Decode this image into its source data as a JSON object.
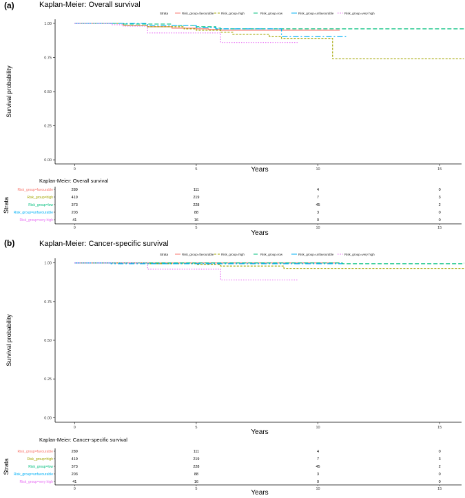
{
  "chart_data": [
    {
      "panel_label": "(a)",
      "type": "line",
      "subtype": "kaplan-meier step",
      "title": "Kaplan-Meier: Overall survival",
      "xlabel": "Years",
      "ylabel": "Survival probability",
      "xlim": [
        -0.8,
        15.9
      ],
      "ylim": [
        -0.03,
        1.03
      ],
      "xticks": [
        "0",
        "5",
        "10",
        "15"
      ],
      "yticks": [
        "0.00",
        "0.25",
        "0.50",
        "0.75",
        "1.00"
      ],
      "legend_title": "Strata",
      "series": [
        {
          "name": "Risk_group=favourable",
          "color": "#F8766D",
          "dash": "solid",
          "x": [
            0,
            2,
            3,
            4,
            5,
            5.5,
            6,
            10.9
          ],
          "y": [
            1,
            0.985,
            0.975,
            0.965,
            0.96,
            0.955,
            0.95,
            0.95
          ]
        },
        {
          "name": "Risk_group=high",
          "color": "#A3A500",
          "dash": "short",
          "x": [
            0,
            2,
            3,
            4.5,
            5,
            6,
            6.5,
            8,
            8.5,
            10.5,
            10.6,
            16
          ],
          "y": [
            1,
            0.985,
            0.975,
            0.96,
            0.95,
            0.935,
            0.92,
            0.905,
            0.89,
            0.89,
            0.74,
            0.74
          ]
        },
        {
          "name": "Risk_group=low",
          "color": "#00BF7D",
          "dash": "long",
          "x": [
            0,
            2,
            4,
            5,
            5.8,
            6,
            16
          ],
          "y": [
            1,
            0.995,
            0.985,
            0.975,
            0.965,
            0.96,
            0.96
          ]
        },
        {
          "name": "Risk_group=unfavourable",
          "color": "#00B0F6",
          "dash": "longshort",
          "x": [
            0,
            3,
            5,
            5.8,
            8.5,
            11.2
          ],
          "y": [
            1,
            0.985,
            0.97,
            0.96,
            0.905,
            0.905
          ]
        },
        {
          "name": "Risk_group=very high",
          "color": "#E76BF3",
          "dash": "dot",
          "x": [
            0,
            1.5,
            2,
            3,
            5.5,
            6,
            9.2
          ],
          "y": [
            1,
            0.99,
            0.98,
            0.93,
            0.93,
            0.86,
            0.86
          ]
        }
      ],
      "risk_table": {
        "title": "Kaplan-Meier: Overall survival",
        "ylabel": "Strata",
        "xlabel": "Years",
        "times": [
          "0",
          "5",
          "10",
          "15"
        ],
        "rows": [
          {
            "strata": "Risk_group=favourable",
            "counts": [
              "289",
              "111",
              "4",
              "0"
            ]
          },
          {
            "strata": "Risk_group=high",
            "counts": [
              "419",
              "219",
              "7",
              "3"
            ]
          },
          {
            "strata": "Risk_group=low",
            "counts": [
              "373",
              "228",
              "45",
              "2"
            ]
          },
          {
            "strata": "Risk_group=unfavourable",
            "counts": [
              "203",
              "88",
              "3",
              "0"
            ]
          },
          {
            "strata": "Risk_group=very high",
            "counts": [
              "41",
              "16",
              "0",
              "0"
            ]
          }
        ]
      }
    },
    {
      "panel_label": "(b)",
      "type": "line",
      "subtype": "kaplan-meier step",
      "title": "Kaplan-Meier: Cancer-specific survival",
      "xlabel": "Years",
      "ylabel": "Survival probability",
      "xlim": [
        -0.8,
        15.9
      ],
      "ylim": [
        -0.03,
        1.03
      ],
      "xticks": [
        "0",
        "5",
        "10",
        "15"
      ],
      "yticks": [
        "0.00",
        "0.25",
        "0.50",
        "0.75",
        "1.00"
      ],
      "legend_title": "Strata",
      "series": [
        {
          "name": "Risk_group=favourable",
          "color": "#F8766D",
          "dash": "solid",
          "x": [
            0,
            10.9
          ],
          "y": [
            1,
            1
          ]
        },
        {
          "name": "Risk_group=high",
          "color": "#A3A500",
          "dash": "short",
          "x": [
            0,
            3,
            5,
            6,
            8.6,
            16
          ],
          "y": [
            1,
            0.995,
            0.99,
            0.98,
            0.965,
            0.965
          ]
        },
        {
          "name": "Risk_group=low",
          "color": "#00BF7D",
          "dash": "long",
          "x": [
            0,
            11,
            16
          ],
          "y": [
            1,
            0.995,
            1.0
          ]
        },
        {
          "name": "Risk_group=unfavourable",
          "color": "#00B0F6",
          "dash": "longshort",
          "x": [
            0,
            1.5,
            11
          ],
          "y": [
            1,
            0.995,
            0.995
          ]
        },
        {
          "name": "Risk_group=very high",
          "color": "#E76BF3",
          "dash": "dot",
          "x": [
            0,
            3,
            6,
            9.2
          ],
          "y": [
            1,
            0.96,
            0.89,
            0.89
          ]
        }
      ],
      "risk_table": {
        "title": "Kaplan-Meier: Cancer-specific survival",
        "ylabel": "Strata",
        "xlabel": "Years",
        "times": [
          "0",
          "5",
          "10",
          "15"
        ],
        "rows": [
          {
            "strata": "Risk_group=favourable",
            "counts": [
              "289",
              "111",
              "4",
              "0"
            ]
          },
          {
            "strata": "Risk_group=high",
            "counts": [
              "419",
              "219",
              "7",
              "3"
            ]
          },
          {
            "strata": "Risk_group=low",
            "counts": [
              "373",
              "228",
              "45",
              "2"
            ]
          },
          {
            "strata": "Risk_group=unfavourable",
            "counts": [
              "203",
              "88",
              "3",
              "0"
            ]
          },
          {
            "strata": "Risk_group=very high",
            "counts": [
              "41",
              "16",
              "0",
              "0"
            ]
          }
        ]
      }
    }
  ]
}
